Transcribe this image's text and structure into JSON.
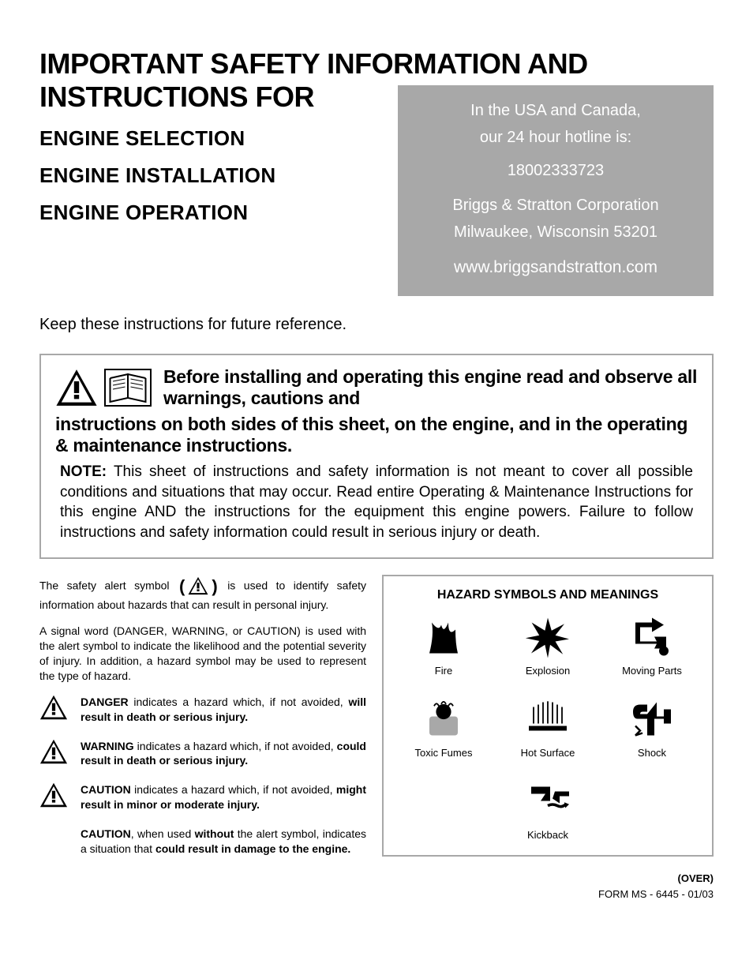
{
  "title": {
    "line1": "IMPORTANT SAFETY INFORMATION AND",
    "line2": "INSTRUCTIONS FOR",
    "subheads": [
      "ENGINE SELECTION",
      "ENGINE INSTALLATION",
      "ENGINE OPERATION"
    ]
  },
  "contact": {
    "line1": "In the USA and Canada,",
    "line2": "our 24 hour hotline is:",
    "phone": "18002333723",
    "company": "Briggs & Stratton Corporation",
    "city": "Milwaukee, Wisconsin  53201",
    "url": "www.briggsandstratton.com",
    "bg_color": "#a8a8a8",
    "text_color": "#ffffff"
  },
  "keep_line": "Keep these instructions for future reference.",
  "warning_box": {
    "border_color": "#a8a8a8",
    "head_text": "Before installing and operating this engine read and observe all warnings, cautions and",
    "cont_text": "instructions on both sides of this sheet, on the engine, and in the operating & maintenance instructions.",
    "note_label": "NOTE:",
    "note_body": "This sheet of instructions and safety information is not meant to cover all possible conditions and situations that may occur. Read entire Operating & Maintenance Instructions for this engine AND the instructions for the equipment this engine powers. Failure to follow instructions and safety information could result in serious injury or death."
  },
  "left_column": {
    "intro_a": "The safety alert symbol",
    "intro_b": "is used to identify safety information about hazards that can result in personal injury.",
    "signal_para": "A signal word (DANGER, WARNING, or CAUTION) is used with the alert symbol to indicate the likelihood and the potential severity of injury. In addition, a hazard symbol may be used to represent the type of hazard.",
    "definitions": [
      {
        "word": "DANGER",
        "text_a": " indicates a hazard which, if not avoided, ",
        "bold_tail": "will result in death or serious injury.",
        "has_icon": true
      },
      {
        "word": "WARNING",
        "text_a": " indicates a hazard which, if not avoided, ",
        "bold_tail": "could result in death or serious injury.",
        "has_icon": true
      },
      {
        "word": "CAUTION",
        "text_a": " indicates a hazard which, if not avoided, ",
        "bold_tail": "might result in minor or moderate injury.",
        "has_icon": true
      },
      {
        "word": "CAUTION",
        "text_a": ", when used ",
        "mid_bold": "without",
        "text_b": " the alert symbol, indicates a situation that ",
        "bold_tail": "could result in damage to the engine.",
        "has_icon": false
      }
    ]
  },
  "hazard_panel": {
    "border_color": "#a8a8a8",
    "title": "HAZARD SYMBOLS AND MEANINGS",
    "items": [
      {
        "label": "Fire",
        "icon": "fire"
      },
      {
        "label": "Explosion",
        "icon": "explosion"
      },
      {
        "label": "Moving Parts",
        "icon": "moving"
      },
      {
        "label": "Toxic Fumes",
        "icon": "fumes"
      },
      {
        "label": "Hot Surface",
        "icon": "hot"
      },
      {
        "label": "Shock",
        "icon": "shock"
      },
      {
        "label": "Kickback",
        "icon": "kickback"
      }
    ]
  },
  "footer": {
    "over": "(OVER)",
    "form": "FORM MS - 6445 - 01/03"
  }
}
